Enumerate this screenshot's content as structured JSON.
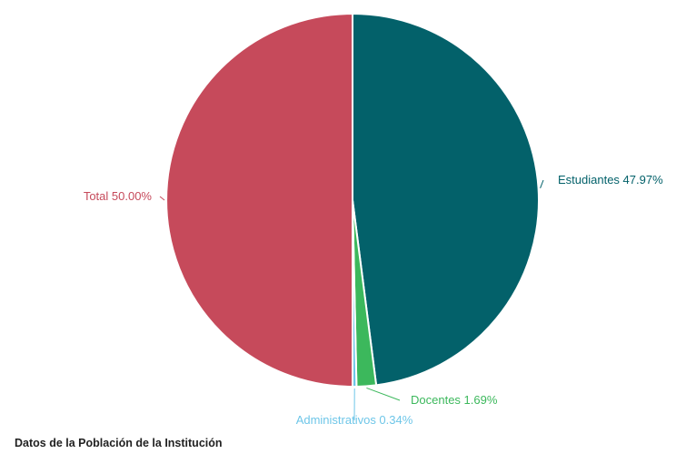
{
  "chart_data": {
    "type": "pie",
    "title": "",
    "slices": [
      {
        "label": "Estudiantes",
        "value": 47.97,
        "display": "47.97%",
        "color": "#03616a"
      },
      {
        "label": "Docentes",
        "value": 1.69,
        "display": "1.69%",
        "color": "#3cb85c"
      },
      {
        "label": "Administrativos",
        "value": 0.34,
        "display": "0.34%",
        "color": "#6ec6e8"
      },
      {
        "label": "Total",
        "value": 50.0,
        "display": "50.00%",
        "color": "#c64a5b"
      }
    ],
    "start_angle_deg": 0,
    "direction": "clockwise",
    "separator_color": "#ffffff",
    "legend": "none"
  },
  "caption": "Datos de la Población de la Institución"
}
